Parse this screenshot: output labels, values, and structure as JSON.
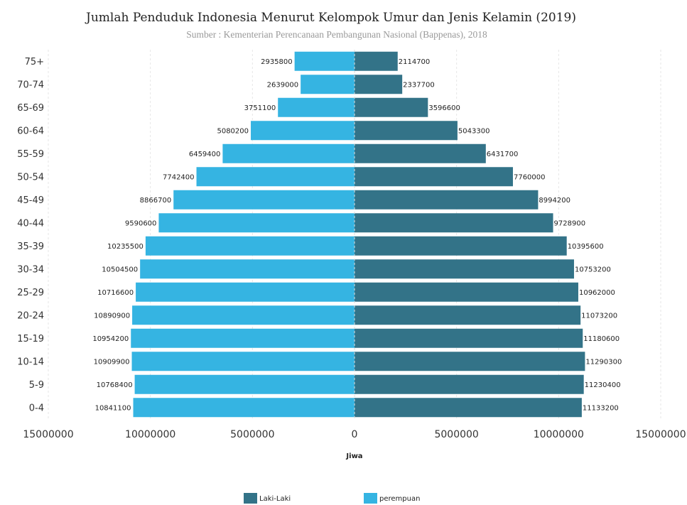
{
  "chart_data": {
    "type": "bar",
    "orientation": "horizontal-population-pyramid",
    "title": "Jumlah Penduduk Indonesia Menurut Kelompok Umur dan Jenis Kelamin (2019)",
    "subtitle": "Sumber : Kementerian Perencanaan Pembangunan Nasional (Bappenas), 2018",
    "xlabel": "Jiwa",
    "ylabel": "",
    "xlim": [
      -15000000,
      15000000
    ],
    "x_ticks": [
      -15000000,
      -10000000,
      -5000000,
      0,
      5000000,
      10000000,
      15000000
    ],
    "x_tick_labels": [
      "15000000",
      "10000000",
      "5000000",
      "0",
      "5000000",
      "10000000",
      "15000000"
    ],
    "grid": "vertical-dashed",
    "legend_position": "bottom",
    "categories": [
      "75+",
      "70-74",
      "65-69",
      "60-64",
      "55-59",
      "50-54",
      "45-49",
      "40-44",
      "35-39",
      "30-34",
      "25-29",
      "20-24",
      "15-19",
      "10-14",
      "5-9",
      "0-4"
    ],
    "series": [
      {
        "name": "Laki-Laki",
        "side": "right",
        "color": "#337388",
        "values": [
          2114700,
          2337700,
          3596600,
          5043300,
          6431700,
          7760000,
          8994200,
          9728900,
          10395600,
          10753200,
          10962000,
          11073200,
          11180600,
          11290300,
          11230400,
          11133200
        ]
      },
      {
        "name": "perempuan",
        "side": "left",
        "color": "#35b4e2",
        "values": [
          2935800,
          2639000,
          3751100,
          5080200,
          6459400,
          7742400,
          8866700,
          9590600,
          10235500,
          10504500,
          10716600,
          10890900,
          10954200,
          10909900,
          10768400,
          10841100
        ]
      }
    ]
  }
}
